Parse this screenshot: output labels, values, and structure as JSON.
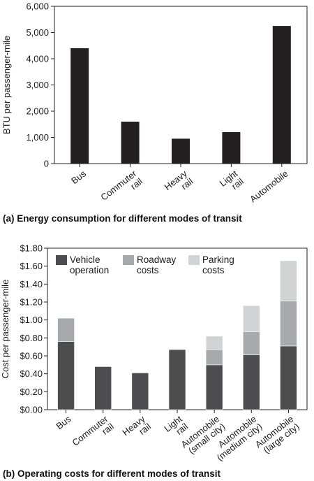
{
  "chart_data": [
    {
      "type": "bar",
      "caption": "(a) Energy consumption for different modes of transit",
      "ylabel": "BTU per passenger-mile",
      "xlabel": "",
      "ylim": [
        0,
        6000
      ],
      "yticks": [
        "0",
        "1,000",
        "2,000",
        "3,000",
        "4,000",
        "5,000",
        "6,000"
      ],
      "ytick_values": [
        0,
        1000,
        2000,
        3000,
        4000,
        5000,
        6000
      ],
      "categories": [
        [
          "Bus"
        ],
        [
          "Commuter",
          "rail"
        ],
        [
          "Heavy",
          "rail"
        ],
        [
          "Light",
          "rail"
        ],
        [
          "Automobile"
        ]
      ],
      "values": [
        4400,
        1600,
        950,
        1200,
        5250
      ],
      "grid": false,
      "colors": {
        "bar": "#231f20"
      }
    },
    {
      "type": "bar",
      "stacked": true,
      "caption": "(b) Operating costs for different modes of transit",
      "ylabel": "Cost per passenger-mile",
      "xlabel": "",
      "ylim": [
        0,
        1.8
      ],
      "yticks": [
        "$0.00",
        "$0.20",
        "$0.40",
        "$0.60",
        "$0.80",
        "$1.00",
        "$1.20",
        "$1.40",
        "$1.60",
        "$1.80"
      ],
      "ytick_values": [
        0,
        0.2,
        0.4,
        0.6,
        0.8,
        1.0,
        1.2,
        1.4,
        1.6,
        1.8
      ],
      "categories": [
        [
          "Bus"
        ],
        [
          "Commuter",
          "rail"
        ],
        [
          "Heavy",
          "rail"
        ],
        [
          "Light",
          "rail"
        ],
        [
          "Automobile",
          "(small city)"
        ],
        [
          "Automobile",
          "(medium city)"
        ],
        [
          "Automobile",
          "(large city)"
        ]
      ],
      "series": [
        {
          "name": [
            "Vehicle",
            "operation"
          ],
          "color": "#4d4d4f",
          "values": [
            0.76,
            0.48,
            0.41,
            0.67,
            0.5,
            0.61,
            0.71
          ]
        },
        {
          "name": [
            "Roadway",
            "costs"
          ],
          "color": "#a7a9ac",
          "values": [
            0.26,
            0,
            0,
            0,
            0.17,
            0.26,
            0.5
          ]
        },
        {
          "name": [
            "Parking",
            "costs"
          ],
          "color": "#d1d3d4",
          "values": [
            0,
            0,
            0,
            0,
            0.15,
            0.29,
            0.45
          ]
        }
      ],
      "legend": "top-left inside plot",
      "grid": false
    }
  ]
}
